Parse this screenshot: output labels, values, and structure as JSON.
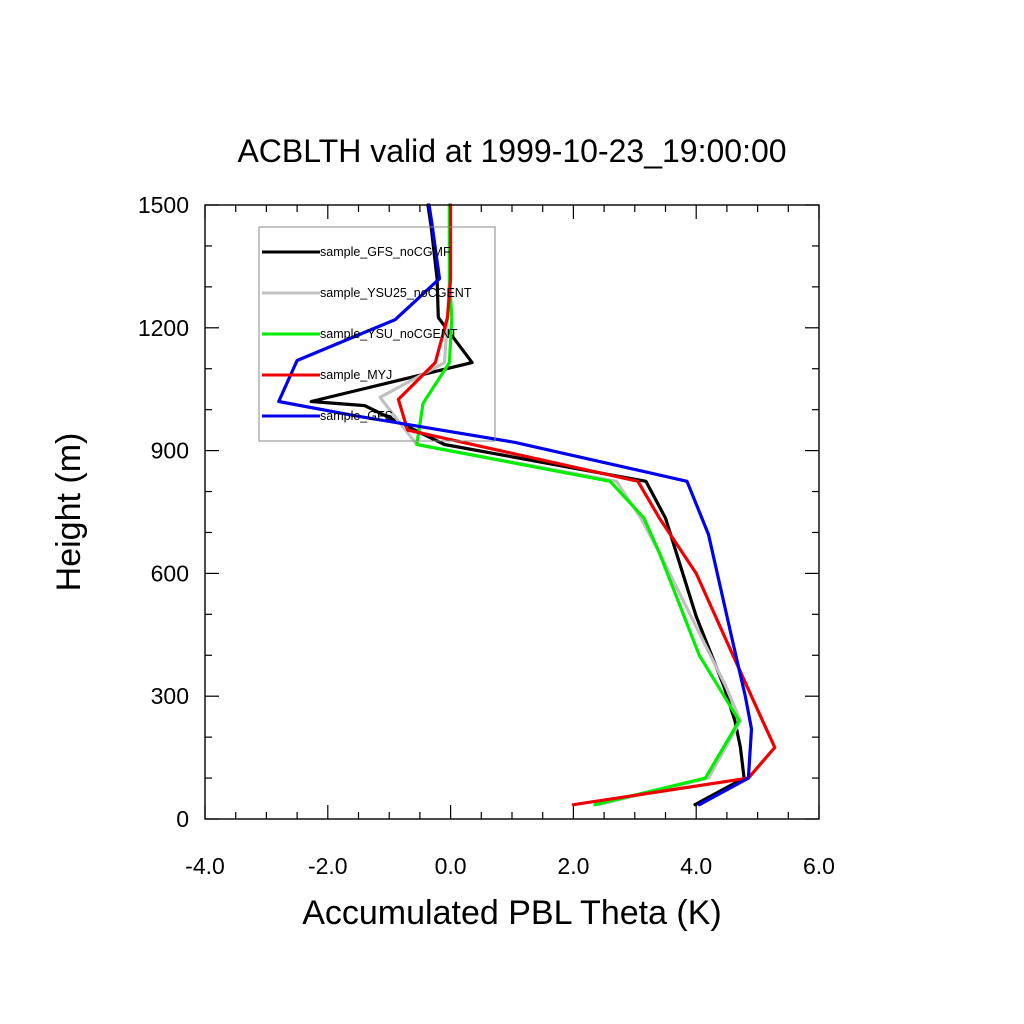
{
  "chart_data": {
    "type": "line",
    "title": "ACBLTH valid at 1999-10-23_19:00:00",
    "xlabel": "Accumulated PBL Theta (K)",
    "ylabel": "Height (m)",
    "xlim": [
      -4.0,
      6.0
    ],
    "ylim": [
      0,
      1500
    ],
    "xticks": [
      "-4.0",
      "-2.0",
      "0.0",
      "2.0",
      "4.0",
      "6.0"
    ],
    "yticks": [
      "0",
      "300",
      "600",
      "900",
      "1200",
      "1500"
    ],
    "legend_position": "upper-left, inside plot",
    "grid": false,
    "series": [
      {
        "name": "sample_GFS_noCGMF",
        "color": "#000000",
        "points": [
          [
            3.98,
            35
          ],
          [
            4.78,
            100
          ],
          [
            4.72,
            175
          ],
          [
            4.63,
            240
          ],
          [
            4.45,
            325
          ],
          [
            4.0,
            495
          ],
          [
            3.5,
            735
          ],
          [
            3.18,
            825
          ],
          [
            -0.1,
            915
          ],
          [
            -1.4,
            1010
          ],
          [
            -2.27,
            1020
          ],
          [
            0.35,
            1115
          ],
          [
            -0.2,
            1225
          ],
          [
            -0.22,
            1320
          ],
          [
            -0.32,
            1450
          ],
          [
            -0.37,
            1500
          ]
        ]
      },
      {
        "name": "sample_YSU25_noCGENT",
        "color": "#c0c0c0",
        "points": [
          [
            2.4,
            35
          ],
          [
            4.2,
            100
          ],
          [
            4.72,
            240
          ],
          [
            4.48,
            325
          ],
          [
            3.4,
            650
          ],
          [
            3.1,
            735
          ],
          [
            2.7,
            825
          ],
          [
            -0.55,
            915
          ],
          [
            -1.15,
            1030
          ],
          [
            -0.1,
            1115
          ],
          [
            -0.05,
            1225
          ],
          [
            -0.02,
            1320
          ],
          [
            -0.02,
            1500
          ]
        ]
      },
      {
        "name": "sample_YSU_noCGENT",
        "color": "#00ee00",
        "points": [
          [
            2.35,
            35
          ],
          [
            4.15,
            100
          ],
          [
            4.7,
            240
          ],
          [
            4.05,
            400
          ],
          [
            3.4,
            650
          ],
          [
            3.15,
            735
          ],
          [
            2.6,
            825
          ],
          [
            -0.55,
            915
          ],
          [
            -0.45,
            1015
          ],
          [
            -0.02,
            1115
          ],
          [
            0.02,
            1225
          ],
          [
            -0.02,
            1320
          ],
          [
            -0.02,
            1500
          ]
        ]
      },
      {
        "name": "sample_MYJ",
        "color": "#ee0000",
        "points": [
          [
            2.0,
            35
          ],
          [
            4.85,
            100
          ],
          [
            5.28,
            175
          ],
          [
            5.05,
            250
          ],
          [
            4.6,
            400
          ],
          [
            4.0,
            600
          ],
          [
            3.4,
            735
          ],
          [
            3.05,
            825
          ],
          [
            -0.7,
            950
          ],
          [
            -0.85,
            1025
          ],
          [
            -0.25,
            1115
          ],
          [
            -0.05,
            1225
          ],
          [
            0.0,
            1320
          ],
          [
            0.0,
            1500
          ]
        ]
      },
      {
        "name": "sample_GFS",
        "color": "#0000ee",
        "points": [
          [
            4.05,
            35
          ],
          [
            4.85,
            100
          ],
          [
            4.9,
            220
          ],
          [
            4.8,
            300
          ],
          [
            4.6,
            430
          ],
          [
            4.2,
            695
          ],
          [
            3.85,
            825
          ],
          [
            1.05,
            920
          ],
          [
            -1.55,
            985
          ],
          [
            -2.8,
            1020
          ],
          [
            -2.5,
            1120
          ],
          [
            -0.9,
            1220
          ],
          [
            -0.18,
            1320
          ],
          [
            -0.3,
            1450
          ],
          [
            -0.35,
            1500
          ]
        ]
      }
    ]
  }
}
